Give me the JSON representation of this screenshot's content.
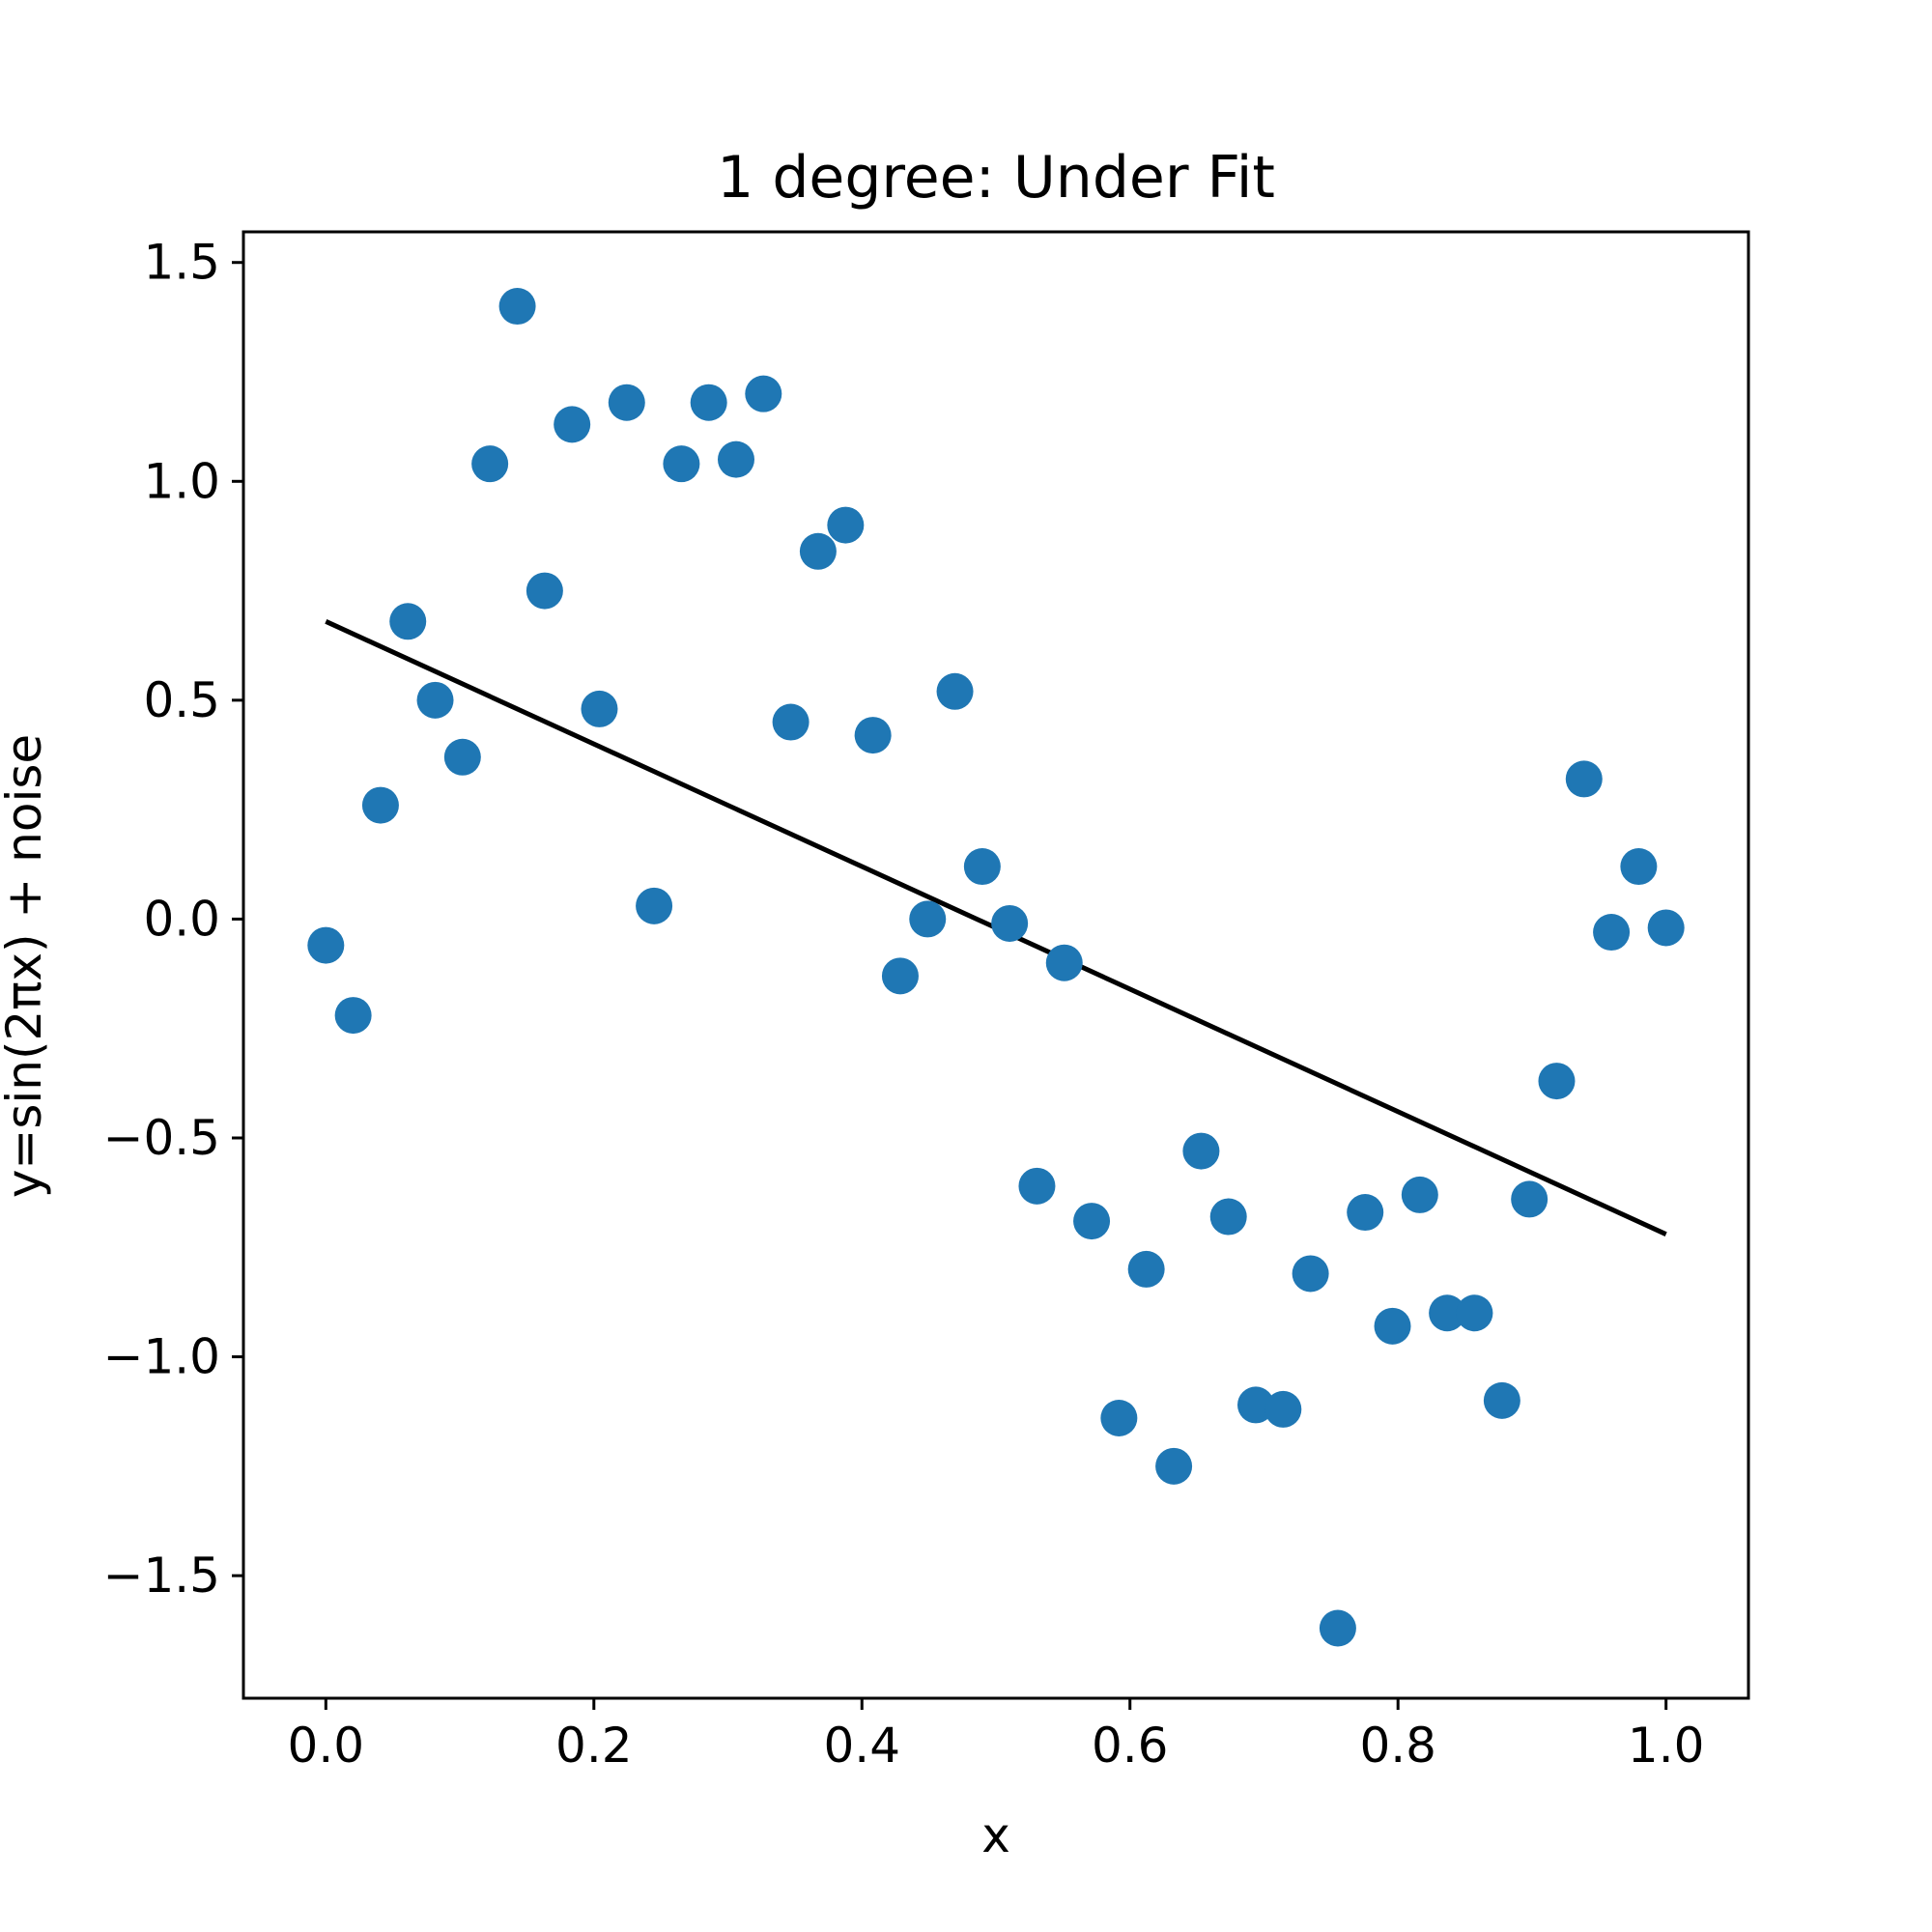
{
  "chart_data": {
    "type": "scatter",
    "title": "1 degree: Under Fit",
    "xlabel": "x",
    "ylabel": "y=sin(2πx) + noise",
    "xlim": [
      -0.0615,
      1.0615
    ],
    "ylim": [
      -1.78,
      1.57
    ],
    "xticks": [
      0.0,
      0.2,
      0.4,
      0.6,
      0.8,
      1.0
    ],
    "xtick_labels": [
      "0.0",
      "0.2",
      "0.4",
      "0.6",
      "0.8",
      "1.0"
    ],
    "yticks": [
      1.5,
      1.0,
      0.5,
      0.0,
      -0.5,
      -1.0,
      -1.5
    ],
    "ytick_labels": [
      "1.5",
      "1.0",
      "0.5",
      "0.0",
      "−0.5",
      "−1.0",
      "−1.5"
    ],
    "grid": false,
    "series": [
      {
        "kind": "scatter",
        "color": "#1f77b4",
        "x": [
          0.0,
          0.0204,
          0.0408,
          0.0612,
          0.0816,
          0.102,
          0.1224,
          0.1429,
          0.1633,
          0.1837,
          0.2041,
          0.2245,
          0.2449,
          0.2653,
          0.2857,
          0.3061,
          0.3265,
          0.3469,
          0.3673,
          0.3878,
          0.4082,
          0.4286,
          0.449,
          0.4694,
          0.4898,
          0.5102,
          0.5306,
          0.551,
          0.5714,
          0.5918,
          0.6122,
          0.6327,
          0.6531,
          0.6735,
          0.6939,
          0.7143,
          0.7347,
          0.7551,
          0.7755,
          0.7959,
          0.8163,
          0.8367,
          0.8571,
          0.8776,
          0.898,
          0.9184,
          0.9388,
          0.9592,
          0.9796,
          1.0
        ],
        "y": [
          -0.06,
          -0.22,
          0.26,
          0.68,
          0.5,
          0.37,
          1.04,
          1.4,
          0.75,
          1.13,
          0.48,
          1.18,
          0.03,
          1.04,
          1.18,
          1.05,
          1.2,
          0.45,
          0.84,
          0.9,
          0.42,
          -0.13,
          0.0,
          0.52,
          0.12,
          -0.01,
          -0.61,
          -0.1,
          -0.69,
          -1.14,
          -0.8,
          -1.25,
          -0.53,
          -0.68,
          -1.11,
          -1.12,
          -0.81,
          -1.62,
          -0.67,
          -0.93,
          -0.63,
          -0.9,
          -0.9,
          -1.1,
          -0.64,
          -0.37,
          0.32,
          -0.03,
          0.12,
          -0.02
        ]
      },
      {
        "kind": "line",
        "color": "#000000",
        "x": [
          0.0,
          1.0
        ],
        "y": [
          0.68,
          -0.72
        ]
      }
    ]
  }
}
